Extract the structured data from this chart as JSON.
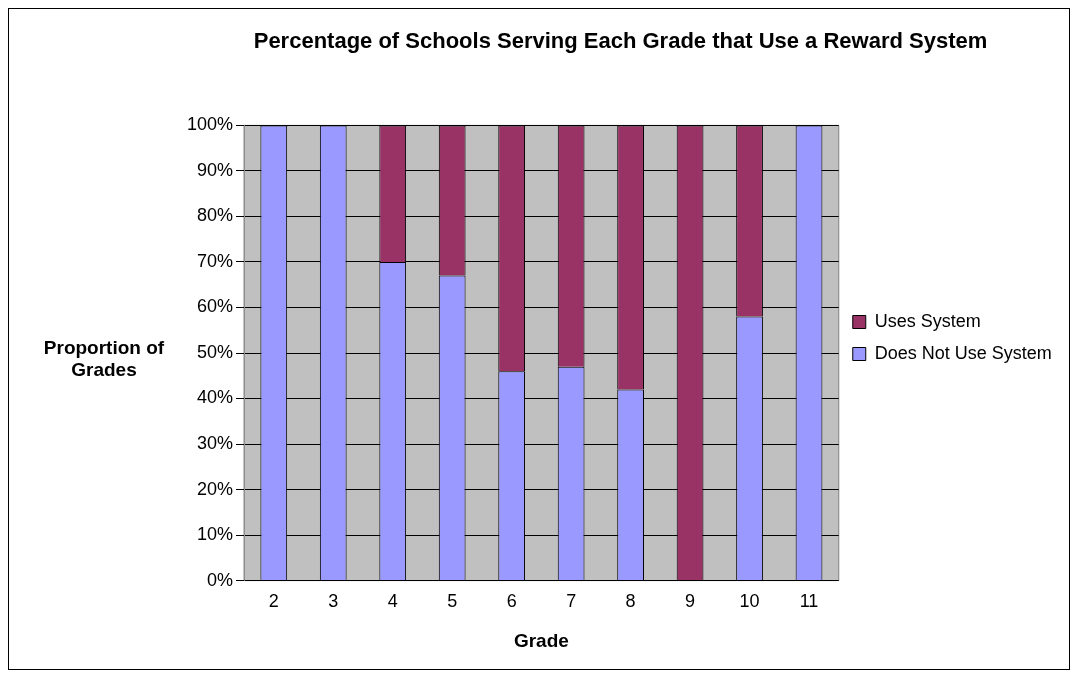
{
  "chart_data": {
    "type": "bar",
    "title": "Percentage of Schools Serving Each Grade that Use a Reward System",
    "xlabel": "Grade",
    "ylabel": "Proportion of Grades",
    "categories": [
      "2",
      "3",
      "4",
      "5",
      "6",
      "7",
      "8",
      "9",
      "10",
      "11"
    ],
    "series": [
      {
        "name": "Does Not Use System",
        "color": "#9999ff",
        "values": [
          100,
          100,
          70,
          67,
          46,
          47,
          42,
          0,
          58,
          100
        ]
      },
      {
        "name": "Uses System",
        "color": "#993366",
        "values": [
          0,
          0,
          30,
          33,
          54,
          53,
          58,
          100,
          42,
          0
        ]
      }
    ],
    "stacked": true,
    "ylim": [
      0,
      100
    ],
    "yticks": [
      {
        "value": 0,
        "label": "0%"
      },
      {
        "value": 10,
        "label": "10%"
      },
      {
        "value": 20,
        "label": "20%"
      },
      {
        "value": 30,
        "label": "30%"
      },
      {
        "value": 40,
        "label": "40%"
      },
      {
        "value": 50,
        "label": "50%"
      },
      {
        "value": 60,
        "label": "60%"
      },
      {
        "value": 70,
        "label": "70%"
      },
      {
        "value": 80,
        "label": "80%"
      },
      {
        "value": 90,
        "label": "90%"
      },
      {
        "value": 100,
        "label": "100%"
      }
    ],
    "grid": "y",
    "legend": "right"
  }
}
